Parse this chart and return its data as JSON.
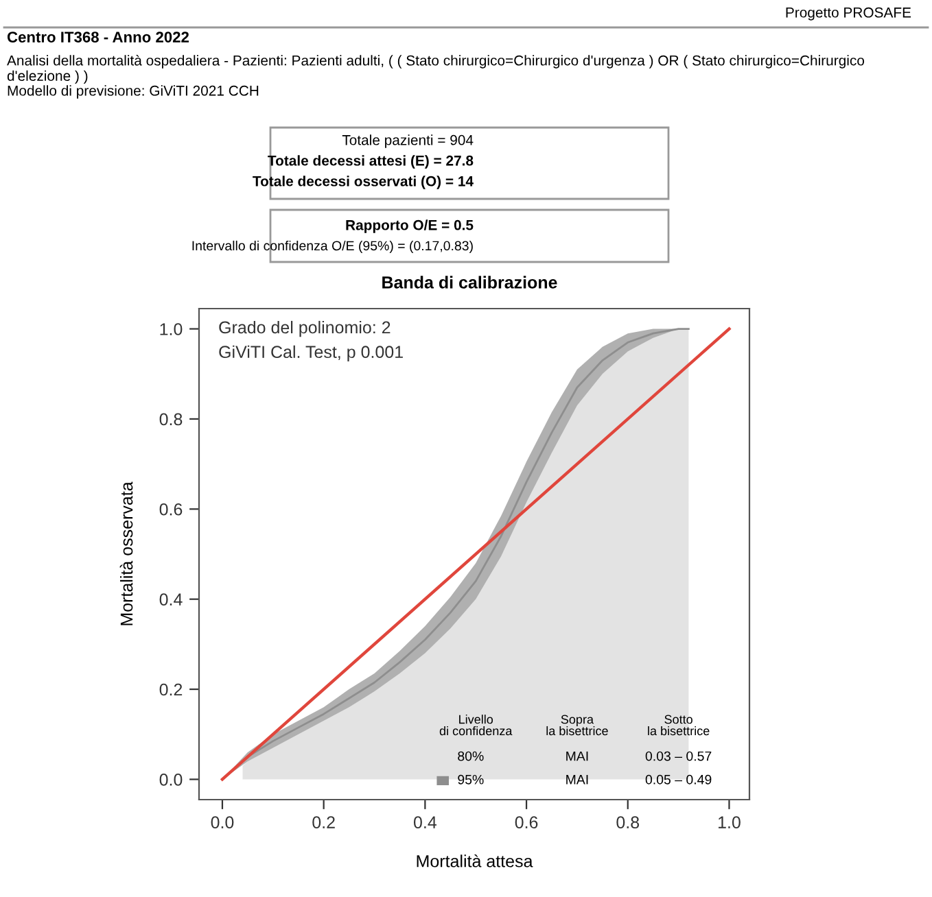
{
  "chart_data": {
    "type": "line",
    "title": "Centro IT368 - Anno 2022",
    "subtitle": "Analisi della mortalità ospedaliera - Pazienti: Pazienti adulti, ( ( Stato chirurgico=Chirurgico d'urgenza ) OR ( Stato chirurgico=Chirurgico d'elezione ) )",
    "xlabel": "Mortalità attesa",
    "ylabel": "Mortalità osservata",
    "annotations": [
      "Progetto PROSAFE",
      "Modello di previsione: GiViTI 2021 CCH",
      "Totale pazienti = 904",
      "Totale decessi attesi (E) = 27.8",
      "Totale decessi osservati (O) = 14",
      "Rapporto O/E = 0.5",
      "Intervallo di confidenza O/E (95%) = (0.17,0.83)",
      "Banda di calibrazione",
      "Grado del polinomio: 2",
      "GiViTI Cal. Test, p 0.001",
      "80%",
      "Livello\ndi confidenza",
      "Sopra\nla bisettrice",
      "Sotto\nla bisettrice",
      "MAI",
      "0.03 – 0.57",
      "MAI",
      "0.05 – 0.49"
    ],
    "series": [
      {
        "type": "area",
        "color": "#e3e3e3",
        "x": [
          0.04,
          0.05,
          0.1,
          0.15,
          0.2,
          0.25,
          0.3,
          0.35,
          0.4,
          0.45,
          0.5,
          0.55,
          0.6,
          0.65,
          0.7,
          0.75,
          0.8,
          0.85,
          0.9,
          0.92
        ],
        "values": [
          0.03,
          0.04,
          0.07,
          0.1,
          0.13,
          0.16,
          0.195,
          0.235,
          0.28,
          0.335,
          0.4,
          0.495,
          0.615,
          0.725,
          0.83,
          0.9,
          0.95,
          0.98,
          1.0,
          1.0
        ]
      },
      {
        "name": "95%",
        "color": "#8e8e8e",
        "x": [
          0,
          0.05,
          0.1,
          0.15,
          0.2,
          0.25,
          0.3,
          0.35,
          0.4,
          0.45,
          0.5,
          0.55,
          0.6,
          0.65,
          0.7,
          0.75,
          0.8,
          0.85,
          0.9,
          0.92
        ],
        "values": [
          0,
          0.05,
          0.085,
          0.115,
          0.145,
          0.18,
          0.215,
          0.26,
          0.31,
          0.37,
          0.44,
          0.54,
          0.66,
          0.77,
          0.87,
          0.93,
          0.97,
          0.99,
          1.0,
          1.0
        ],
        "lower": [
          0,
          0.04,
          0.07,
          0.1,
          0.13,
          0.16,
          0.195,
          0.235,
          0.28,
          0.335,
          0.4,
          0.495,
          0.615,
          0.725,
          0.83,
          0.9,
          0.95,
          0.98,
          1.0,
          1.0
        ],
        "upper": [
          0,
          0.06,
          0.1,
          0.13,
          0.16,
          0.2,
          0.235,
          0.285,
          0.34,
          0.405,
          0.48,
          0.585,
          0.705,
          0.815,
          0.91,
          0.96,
          0.99,
          1.0,
          1.0,
          1.0
        ]
      },
      {
        "color": "#e0463c",
        "x": [
          0,
          1
        ],
        "values": [
          0,
          1
        ]
      }
    ],
    "xlim": [
      -0.046,
      1.04
    ],
    "ylim": [
      -0.045,
      1.045
    ],
    "xticks": [
      {
        "value": 0,
        "label": "0.0"
      },
      {
        "value": 0.2,
        "label": "0.2"
      },
      {
        "value": 0.4,
        "label": "0.4"
      },
      {
        "value": 0.6,
        "label": "0.6"
      },
      {
        "value": 0.8,
        "label": "0.8"
      },
      {
        "value": 1,
        "label": "1.0"
      }
    ],
    "yticks": [
      {
        "value": 0,
        "label": "0.0"
      },
      {
        "value": 0.2,
        "label": "0.2"
      },
      {
        "value": 0.4,
        "label": "0.4"
      },
      {
        "value": 0.6,
        "label": "0.6"
      },
      {
        "value": 0.8,
        "label": "0.8"
      },
      {
        "value": 1,
        "label": "1.0"
      }
    ],
    "grid": false,
    "legend": "bottom right",
    "marker": "none",
    "line_style": "solid"
  }
}
